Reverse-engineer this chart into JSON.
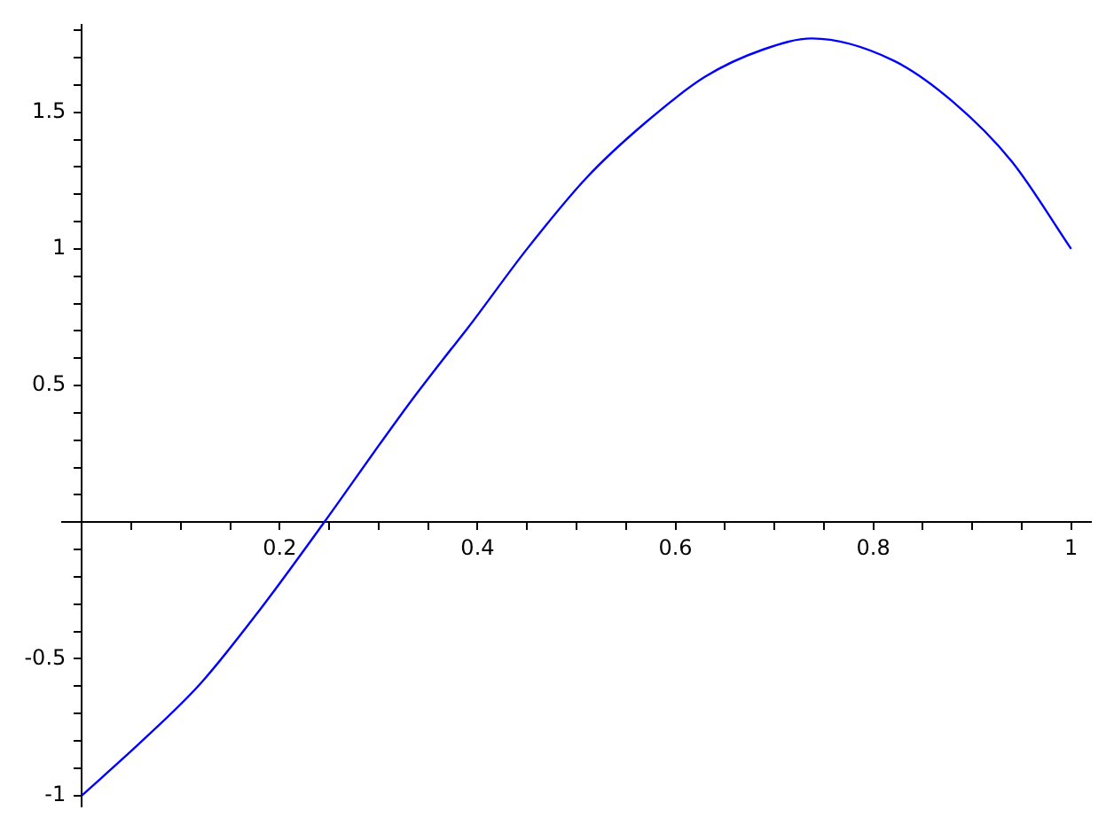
{
  "chart_data": {
    "type": "line",
    "x": [
      0,
      0.061,
      0.12,
      0.18,
      0.245,
      0.3,
      0.33,
      0.366,
      0.39,
      0.45,
      0.51,
      0.569,
      0.63,
      0.689,
      0.738,
      0.82,
      0.88,
      0.94,
      1
    ],
    "series": [
      {
        "color": "#0000ff",
        "values": [
          -1,
          -0.8,
          -0.59,
          -0.32,
          0,
          0.28,
          0.43,
          0.6,
          0.71,
          1,
          1.26,
          1.46,
          1.63,
          1.73,
          1.77,
          1.69,
          1.54,
          1.32,
          1
        ]
      }
    ],
    "xlim": [
      -0.02,
      1.02
    ],
    "ylim": [
      -1.04,
      1.82
    ],
    "xticks": [
      {
        "value": 0.05,
        "label": null
      },
      {
        "value": 0.1,
        "label": null
      },
      {
        "value": 0.15,
        "label": null
      },
      0.2,
      {
        "value": 0.25,
        "label": null
      },
      {
        "value": 0.3,
        "label": null
      },
      {
        "value": 0.35,
        "label": null
      },
      0.4,
      {
        "value": 0.45,
        "label": null
      },
      {
        "value": 0.5,
        "label": null
      },
      {
        "value": 0.55,
        "label": null
      },
      0.6,
      {
        "value": 0.65,
        "label": null
      },
      {
        "value": 0.7,
        "label": null
      },
      {
        "value": 0.75,
        "label": null
      },
      0.8,
      {
        "value": 0.85,
        "label": null
      },
      {
        "value": 0.9,
        "label": null
      },
      {
        "value": 0.95,
        "label": null
      },
      1
    ],
    "yticks": [
      -1,
      {
        "value": -0.9,
        "label": null
      },
      {
        "value": -0.8,
        "label": null
      },
      {
        "value": -0.7,
        "label": null
      },
      {
        "value": -0.6,
        "label": null
      },
      -0.5,
      {
        "value": -0.4,
        "label": null
      },
      {
        "value": -0.3,
        "label": null
      },
      {
        "value": -0.2,
        "label": null
      },
      {
        "value": -0.1,
        "label": null
      },
      {
        "value": 0.1,
        "label": null
      },
      {
        "value": 0.2,
        "label": null
      },
      {
        "value": 0.3,
        "label": null
      },
      {
        "value": 0.4,
        "label": null
      },
      0.5,
      {
        "value": 0.6,
        "label": null
      },
      {
        "value": 0.7,
        "label": null
      },
      {
        "value": 0.8,
        "label": null
      },
      {
        "value": 0.9,
        "label": null
      },
      1,
      {
        "value": 1.1,
        "label": null
      },
      {
        "value": 1.2,
        "label": null
      },
      {
        "value": 1.3,
        "label": null
      },
      {
        "value": 1.4,
        "label": null
      },
      1.5,
      {
        "value": 1.6,
        "label": null
      },
      {
        "value": 1.7,
        "label": null
      },
      {
        "value": 1.8,
        "label": null
      }
    ],
    "grid": false,
    "legend": false,
    "marker": "none",
    "line_style": "solid"
  }
}
